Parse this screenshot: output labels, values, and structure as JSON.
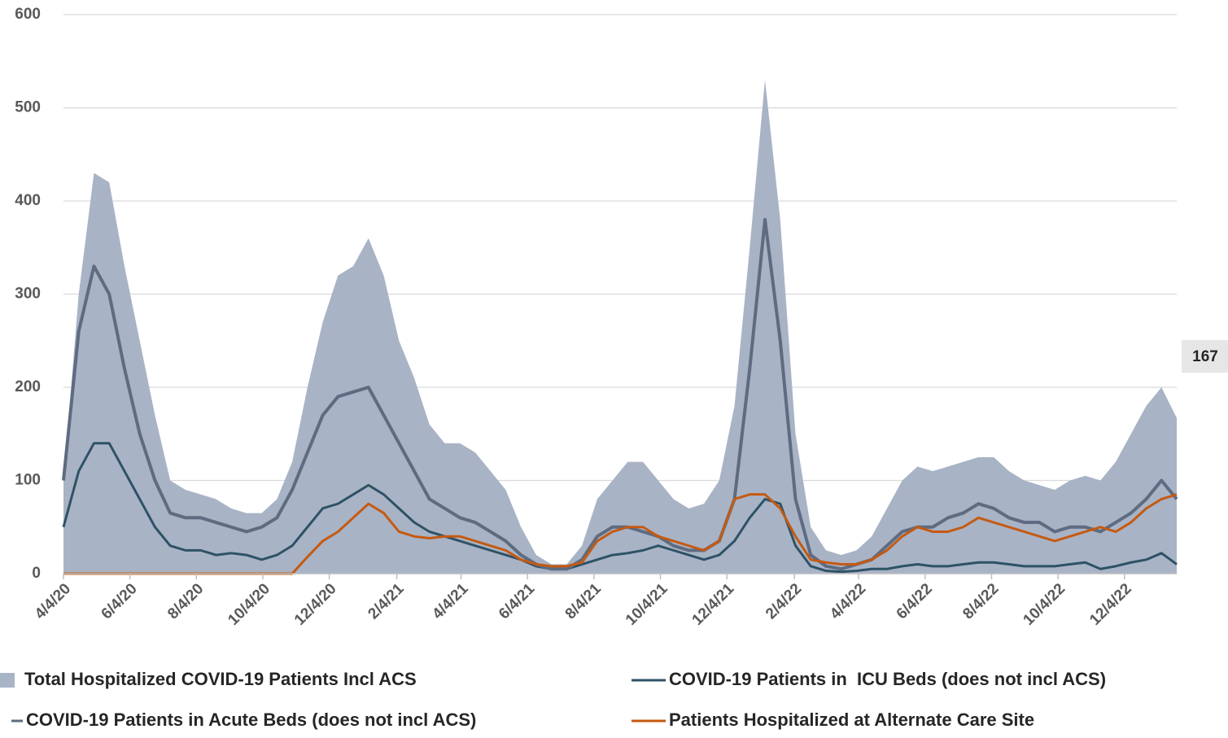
{
  "chart_data": {
    "type": "line",
    "x": [
      "4/4/20",
      "4/18/20",
      "5/2/20",
      "5/16/20",
      "5/30/20",
      "6/13/20",
      "6/27/20",
      "7/11/20",
      "7/25/20",
      "8/8/20",
      "8/22/20",
      "9/5/20",
      "9/19/20",
      "10/3/20",
      "10/17/20",
      "10/31/20",
      "11/14/20",
      "11/28/20",
      "12/12/20",
      "12/26/20",
      "1/9/21",
      "1/23/21",
      "2/6/21",
      "2/20/21",
      "3/6/21",
      "3/20/21",
      "4/3/21",
      "4/17/21",
      "5/1/21",
      "5/15/21",
      "5/29/21",
      "6/12/21",
      "6/26/21",
      "7/10/21",
      "7/24/21",
      "8/7/21",
      "8/21/21",
      "9/4/21",
      "9/18/21",
      "10/2/21",
      "10/16/21",
      "10/30/21",
      "11/13/21",
      "11/27/21",
      "12/11/21",
      "12/25/21",
      "1/8/22",
      "1/22/22",
      "2/5/22",
      "2/19/22",
      "3/5/22",
      "3/19/22",
      "4/2/22",
      "4/16/22",
      "4/30/22",
      "5/14/22",
      "5/28/22",
      "6/11/22",
      "6/25/22",
      "7/9/22",
      "7/23/22",
      "8/6/22",
      "8/20/22",
      "9/3/22",
      "9/17/22",
      "10/1/22",
      "10/15/22",
      "10/29/22",
      "11/12/22",
      "11/26/22",
      "12/10/22",
      "12/24/22",
      "1/7/23",
      "1/21/23"
    ],
    "series": [
      {
        "name": "Total Hospitalized COVID-19 Patients Incl ACS",
        "kind": "area",
        "color": "#a9b3c6",
        "label_last": true,
        "values": [
          100,
          300,
          430,
          420,
          330,
          250,
          170,
          100,
          90,
          85,
          80,
          70,
          65,
          65,
          80,
          120,
          200,
          270,
          320,
          330,
          360,
          320,
          250,
          210,
          160,
          140,
          140,
          130,
          110,
          90,
          50,
          20,
          10,
          10,
          30,
          80,
          100,
          120,
          120,
          100,
          80,
          70,
          75,
          100,
          180,
          350,
          530,
          380,
          150,
          50,
          25,
          20,
          25,
          40,
          70,
          100,
          115,
          110,
          115,
          120,
          125,
          125,
          110,
          100,
          95,
          90,
          100,
          105,
          100,
          120,
          150,
          180,
          200,
          167
        ]
      },
      {
        "name": "COVID-19 Patients in  ICU Beds (does not incl ACS)",
        "kind": "line",
        "color": "#2e5266",
        "values": [
          50,
          110,
          140,
          140,
          110,
          80,
          50,
          30,
          25,
          25,
          20,
          22,
          20,
          15,
          20,
          30,
          50,
          70,
          75,
          85,
          95,
          85,
          70,
          55,
          45,
          40,
          35,
          30,
          25,
          20,
          15,
          8,
          5,
          5,
          10,
          15,
          20,
          22,
          25,
          30,
          25,
          20,
          15,
          20,
          35,
          60,
          80,
          75,
          30,
          8,
          3,
          2,
          3,
          5,
          5,
          8,
          10,
          8,
          8,
          10,
          12,
          12,
          10,
          8,
          8,
          8,
          10,
          12,
          5,
          8,
          12,
          15,
          22,
          10
        ]
      },
      {
        "name": "COVID-19 Patients in Acute Beds (does not incl ACS)",
        "kind": "line",
        "color": "#5e6b80",
        "values": [
          100,
          260,
          330,
          300,
          220,
          150,
          100,
          65,
          60,
          60,
          55,
          50,
          45,
          50,
          60,
          90,
          130,
          170,
          190,
          195,
          200,
          170,
          140,
          110,
          80,
          70,
          60,
          55,
          45,
          35,
          20,
          10,
          5,
          5,
          15,
          40,
          50,
          50,
          45,
          40,
          30,
          25,
          25,
          35,
          80,
          220,
          380,
          250,
          80,
          20,
          8,
          5,
          10,
          15,
          30,
          45,
          50,
          50,
          60,
          65,
          75,
          70,
          60,
          55,
          55,
          45,
          50,
          50,
          45,
          55,
          65,
          80,
          100,
          80
        ]
      },
      {
        "name": "Patients Hospitalized at Alternate Care Site",
        "kind": "line",
        "color": "#c55a11",
        "values": [
          0,
          0,
          0,
          0,
          0,
          0,
          0,
          0,
          0,
          0,
          0,
          0,
          0,
          0,
          0,
          0,
          18,
          35,
          45,
          60,
          75,
          65,
          45,
          40,
          38,
          40,
          40,
          35,
          30,
          25,
          15,
          10,
          8,
          8,
          12,
          35,
          45,
          50,
          50,
          40,
          35,
          30,
          25,
          35,
          80,
          85,
          85,
          70,
          40,
          15,
          12,
          10,
          10,
          15,
          25,
          40,
          50,
          45,
          45,
          50,
          60,
          55,
          50,
          45,
          40,
          35,
          40,
          45,
          50,
          45,
          55,
          70,
          80,
          85
        ]
      }
    ],
    "xlim": [
      "4/4/20",
      "1/21/23"
    ],
    "xticks": [
      "4/4/20",
      "6/4/20",
      "8/4/20",
      "10/4/20",
      "12/4/20",
      "2/4/21",
      "4/4/21",
      "6/4/21",
      "8/4/21",
      "10/4/21",
      "12/4/21",
      "2/4/22",
      "4/4/22",
      "6/4/22",
      "8/4/22",
      "10/4/22",
      "12/4/22"
    ],
    "ylim": [
      0,
      600
    ],
    "yticks": [
      0,
      100,
      200,
      300,
      400,
      500,
      600
    ],
    "grid": true
  }
}
